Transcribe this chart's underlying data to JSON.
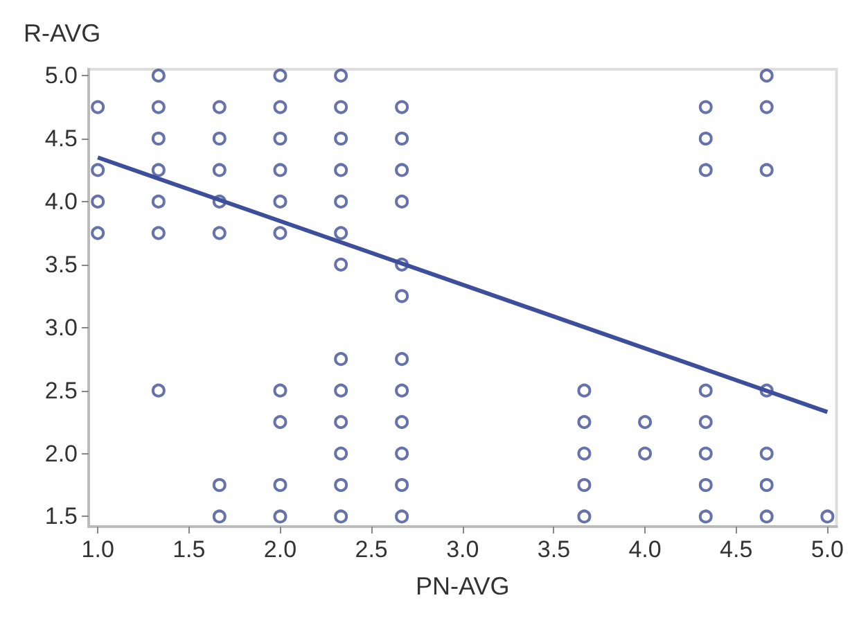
{
  "chart_data": {
    "type": "scatter",
    "xlabel": "PN-AVG",
    "ylabel": "R-AVG",
    "xlim": [
      0.95,
      5.05
    ],
    "ylim": [
      1.42,
      5.05
    ],
    "xticks": [
      {
        "value": 1,
        "label": "1.0"
      },
      1.5,
      {
        "value": 2,
        "label": "2.0"
      },
      2.5,
      {
        "value": 3,
        "label": "3.0"
      },
      3.5,
      {
        "value": 4,
        "label": "4.0"
      },
      4.5,
      {
        "value": 5,
        "label": "5.0"
      }
    ],
    "yticks": [
      1.5,
      {
        "value": 2,
        "label": "2.0"
      },
      2.5,
      {
        "value": 3,
        "label": "3.0"
      },
      3.5,
      {
        "value": 4,
        "label": "4.0"
      },
      4.5,
      {
        "value": 5,
        "label": "5.0"
      }
    ],
    "grid": false,
    "marker": "circle",
    "series": [
      {
        "color": "#3f4f96",
        "x": [
          1.0,
          1.0,
          1.0,
          1.0,
          1.333,
          1.333,
          1.333,
          1.333,
          1.333,
          1.333,
          1.333,
          1.667,
          1.667,
          1.667,
          1.667,
          1.667,
          1.667,
          1.667,
          2.0,
          2.0,
          2.0,
          2.0,
          2.0,
          2.0,
          2.0,
          2.0,
          2.0,
          2.0,
          2.333,
          2.333,
          2.333,
          2.333,
          2.333,
          2.333,
          2.333,
          2.333,
          2.333,
          2.333,
          2.333,
          2.333,
          2.333,
          2.667,
          2.667,
          2.667,
          2.667,
          2.667,
          2.667,
          2.667,
          2.667,
          2.667,
          2.667,
          2.667,
          2.667,
          3.667,
          3.667,
          3.667,
          3.667,
          3.667,
          4.0,
          4.0,
          4.333,
          4.333,
          4.333,
          4.333,
          4.333,
          4.333,
          4.333,
          4.333,
          4.667,
          4.667,
          4.667,
          4.667,
          4.667,
          4.667,
          4.667,
          5.0
        ],
        "values": [
          4.75,
          4.25,
          4.0,
          3.75,
          5.0,
          4.75,
          4.5,
          4.25,
          4.0,
          3.75,
          2.5,
          4.75,
          4.5,
          4.25,
          4.0,
          3.75,
          1.75,
          1.5,
          5.0,
          4.75,
          4.5,
          4.25,
          4.0,
          3.75,
          2.5,
          2.25,
          1.75,
          1.5,
          5.0,
          4.75,
          4.5,
          4.25,
          4.0,
          3.75,
          3.5,
          2.75,
          2.5,
          2.25,
          2.0,
          1.75,
          1.5,
          4.75,
          4.5,
          4.25,
          4.0,
          3.5,
          3.25,
          2.75,
          2.5,
          2.25,
          2.0,
          1.75,
          1.5,
          2.5,
          2.25,
          2.0,
          1.75,
          1.5,
          2.25,
          2.0,
          4.75,
          4.5,
          4.25,
          2.5,
          2.25,
          2.0,
          1.75,
          1.5,
          5.0,
          4.75,
          4.25,
          2.5,
          2.0,
          1.75,
          1.5,
          1.5
        ]
      },
      {
        "type": "line",
        "color": "#3d4e9a",
        "marker": "none",
        "line_style": "solid",
        "x": [
          1.0,
          5.0
        ],
        "values": [
          4.35,
          2.33
        ]
      }
    ]
  }
}
